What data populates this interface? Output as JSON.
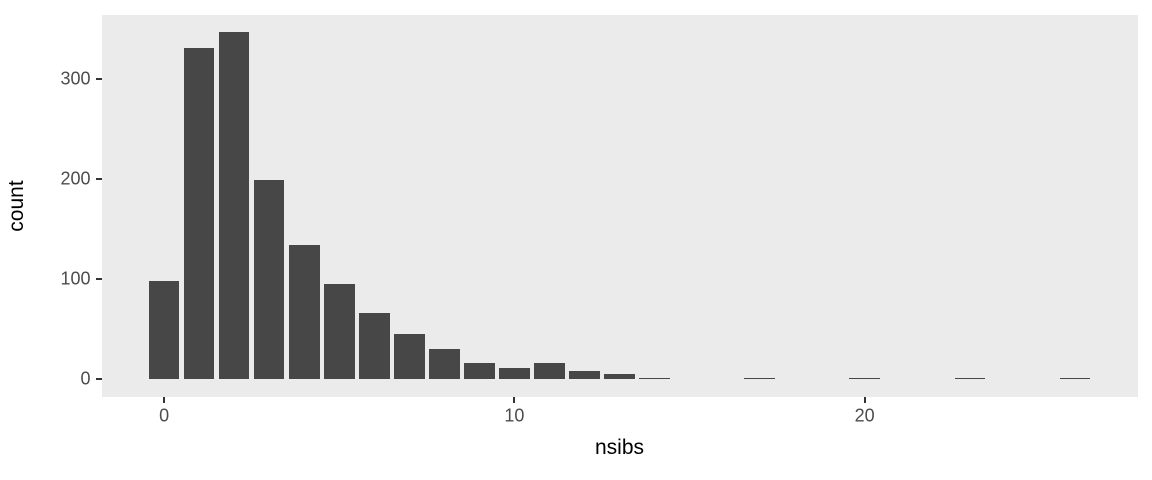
{
  "chart_data": {
    "type": "bar",
    "subtype": "histogram",
    "theme": "ggplot2-grey",
    "title": "",
    "xlabel": "nsibs",
    "ylabel": "count",
    "x": [
      0,
      1,
      2,
      3,
      4,
      5,
      6,
      7,
      8,
      9,
      10,
      11,
      12,
      13,
      14,
      17,
      20,
      23,
      26
    ],
    "values": [
      98,
      331,
      347,
      199,
      134,
      95,
      66,
      45,
      30,
      16,
      11,
      16,
      8,
      5,
      1,
      1,
      1,
      1,
      1
    ],
    "bar_width_units": 0.87,
    "x_ticks": [
      0,
      10,
      20
    ],
    "y_ticks": [
      0,
      100,
      200,
      300
    ],
    "xlim": [
      -1.79,
      27.79
    ],
    "ylim": [
      -17.35,
      364.35
    ],
    "grid": false,
    "legend": false,
    "colors": {
      "bar_fill": "#474747",
      "panel_bg": "#EBEBEB",
      "page_bg": "#FFFFFF",
      "tick_label": "#4D4D4D",
      "axis_title": "#000000",
      "tick_mark": "#333333"
    }
  }
}
